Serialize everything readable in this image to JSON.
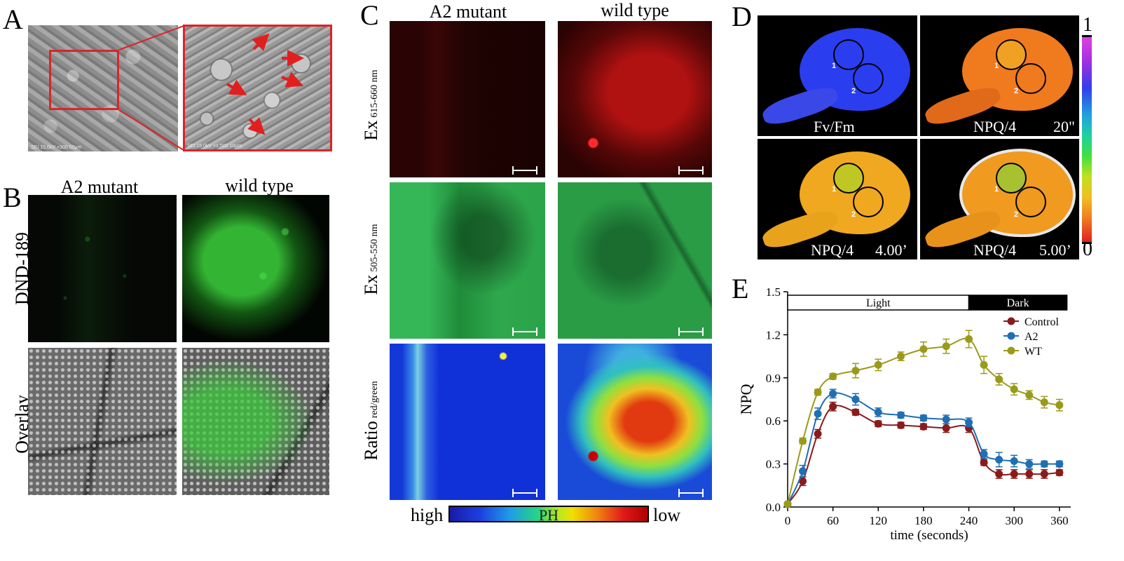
{
  "panel_letters": {
    "a": "A",
    "b": "B",
    "c": "C",
    "d": "D",
    "e": "E"
  },
  "panel_a": {
    "sem_caption_left": "SEI 15.0kV ×300 50μm",
    "sem_caption_right": "SEI 15.0kV ×1,500 10μm"
  },
  "panel_b": {
    "col_mutant": "A2 mutant",
    "col_wild": "wild type",
    "row_dnd": "DND-189",
    "row_overlay": "Overlay"
  },
  "panel_c": {
    "col_mutant": "A2 mutant",
    "col_wild": "wild type",
    "row1_main": "Ex",
    "row1_sub": "615-660 nm",
    "row2_main": "Ex",
    "row2_sub": "505-550 nm",
    "row3_main": "Ratio",
    "row3_sub": "red/green",
    "bar_left": "high",
    "bar_center": "PH",
    "bar_right": "low"
  },
  "panel_d": {
    "label_fvfm": "Fv/Fm",
    "label_npq_20": "NPQ/4",
    "time_20": "20\"",
    "label_npq_400": "NPQ/4",
    "time_400": "4.00’",
    "label_npq_500": "NPQ/4",
    "time_500": "5.00’",
    "circle_1": "1",
    "circle_2": "2",
    "scale_max": "1",
    "scale_min": "0"
  },
  "colors": {
    "control": "#8b1a1a",
    "a2": "#1f6fb4",
    "wt": "#9a9a1a",
    "frame_red": "#d9252a"
  },
  "chart_data": {
    "type": "line",
    "xlabel": "time (seconds)",
    "ylabel": "NPQ",
    "xlim": [
      0,
      375
    ],
    "ylim": [
      0,
      1.5
    ],
    "xticks": [
      0,
      60,
      120,
      180,
      240,
      300,
      360
    ],
    "yticks": [
      0.0,
      0.3,
      0.6,
      0.9,
      1.2,
      1.5
    ],
    "ytick_labels": [
      "0.0",
      "0.3",
      "0.6",
      "0.9",
      "1.2",
      "1.5"
    ],
    "light_bar": {
      "light_label": "Light",
      "dark_label": "Dark",
      "light_range": [
        0,
        240
      ],
      "dark_range": [
        240,
        370
      ]
    },
    "legend_placement": "top-right",
    "series": [
      {
        "name": "Control",
        "color_key": "control",
        "x": [
          0,
          20,
          40,
          60,
          90,
          120,
          150,
          180,
          210,
          240,
          260,
          280,
          300,
          320,
          340,
          360
        ],
        "y": [
          0.02,
          0.18,
          0.51,
          0.7,
          0.66,
          0.58,
          0.57,
          0.56,
          0.55,
          0.55,
          0.31,
          0.23,
          0.23,
          0.23,
          0.23,
          0.24
        ],
        "err": [
          0.01,
          0.03,
          0.03,
          0.03,
          0.02,
          0.02,
          0.02,
          0.02,
          0.03,
          0.03,
          0.02,
          0.03,
          0.03,
          0.03,
          0.03,
          0.02
        ]
      },
      {
        "name": "A2",
        "color_key": "a2",
        "x": [
          0,
          20,
          40,
          60,
          90,
          120,
          150,
          180,
          210,
          240,
          260,
          280,
          300,
          320,
          340,
          360
        ],
        "y": [
          0.02,
          0.25,
          0.65,
          0.79,
          0.75,
          0.66,
          0.64,
          0.62,
          0.61,
          0.59,
          0.37,
          0.33,
          0.32,
          0.3,
          0.3,
          0.3
        ],
        "err": [
          0.01,
          0.04,
          0.04,
          0.03,
          0.04,
          0.03,
          0.02,
          0.02,
          0.03,
          0.03,
          0.03,
          0.05,
          0.04,
          0.03,
          0.02,
          0.02
        ]
      },
      {
        "name": "WT",
        "color_key": "wt",
        "x": [
          0,
          20,
          40,
          60,
          90,
          120,
          150,
          180,
          210,
          240,
          260,
          280,
          300,
          320,
          340,
          360
        ],
        "y": [
          0.02,
          0.46,
          0.8,
          0.91,
          0.95,
          0.99,
          1.05,
          1.1,
          1.12,
          1.17,
          0.99,
          0.89,
          0.82,
          0.78,
          0.73,
          0.71
        ],
        "err": [
          0.01,
          0.02,
          0.02,
          0.02,
          0.05,
          0.04,
          0.03,
          0.05,
          0.05,
          0.06,
          0.06,
          0.04,
          0.04,
          0.03,
          0.04,
          0.04
        ]
      }
    ]
  }
}
